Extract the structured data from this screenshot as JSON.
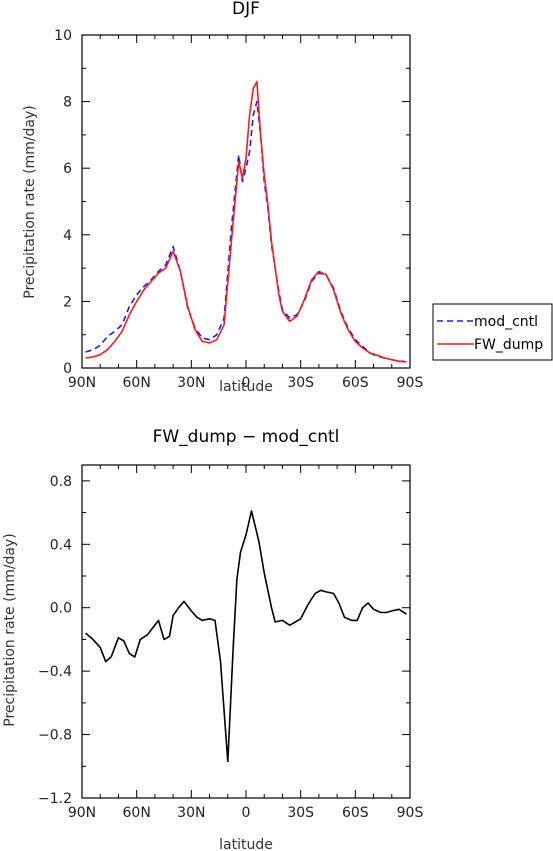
{
  "chart_data": [
    {
      "type": "line",
      "title": "DJF",
      "xlabel": "latitude",
      "ylabel": "Precipitation rate (mm/day)",
      "xticks": [
        "90N",
        "60N",
        "30N",
        "0",
        "30S",
        "60S",
        "90S"
      ],
      "yticks": [
        "0",
        "2",
        "4",
        "6",
        "8",
        "10"
      ],
      "xlim": [
        90,
        -90
      ],
      "ylim": [
        0,
        10
      ],
      "legend_position": "right",
      "series": [
        {
          "name": "mod_cntl",
          "color": "#1a1aff",
          "style": "dashed",
          "x": [
            88,
            84,
            80,
            76,
            72,
            68,
            64,
            60,
            56,
            52,
            48,
            44,
            40,
            36,
            32,
            28,
            24,
            20,
            16,
            12,
            8,
            4,
            2,
            0,
            -2,
            -4,
            -6,
            -8,
            -10,
            -12,
            -14,
            -16,
            -18,
            -20,
            -24,
            -28,
            -32,
            -36,
            -40,
            -44,
            -48,
            -52,
            -56,
            -60,
            -64,
            -68,
            -72,
            -76,
            -80,
            -84,
            -88
          ],
          "y": [
            0.48,
            0.55,
            0.68,
            0.95,
            1.1,
            1.3,
            1.85,
            2.2,
            2.45,
            2.65,
            2.9,
            3.1,
            3.65,
            2.9,
            1.8,
            1.2,
            0.9,
            0.85,
            1.0,
            1.5,
            4.2,
            6.4,
            5.6,
            6.0,
            6.5,
            7.6,
            8.0,
            7.0,
            5.6,
            4.8,
            3.7,
            3.0,
            2.3,
            1.75,
            1.5,
            1.6,
            2.0,
            2.6,
            2.85,
            2.8,
            2.4,
            1.7,
            1.2,
            0.85,
            0.65,
            0.45,
            0.35,
            0.3,
            0.25,
            0.2,
            0.2
          ]
        },
        {
          "name": "FW_dump",
          "color": "#ff1a1a",
          "style": "solid",
          "x": [
            88,
            84,
            80,
            76,
            72,
            68,
            64,
            60,
            56,
            52,
            48,
            44,
            40,
            36,
            32,
            28,
            24,
            20,
            16,
            12,
            8,
            4,
            2,
            0,
            -2,
            -4,
            -6,
            -8,
            -10,
            -12,
            -14,
            -16,
            -18,
            -20,
            -24,
            -28,
            -32,
            -36,
            -40,
            -44,
            -48,
            -52,
            -56,
            -60,
            -64,
            -68,
            -72,
            -76,
            -80,
            -84,
            -88
          ],
          "y": [
            0.3,
            0.33,
            0.4,
            0.55,
            0.8,
            1.1,
            1.6,
            2.0,
            2.35,
            2.6,
            2.85,
            3.0,
            3.5,
            2.9,
            1.85,
            1.15,
            0.8,
            0.75,
            0.85,
            1.3,
            3.8,
            6.2,
            5.7,
            6.3,
            7.6,
            8.4,
            8.6,
            7.0,
            5.8,
            4.9,
            3.8,
            3.0,
            2.2,
            1.7,
            1.4,
            1.55,
            2.05,
            2.65,
            2.9,
            2.8,
            2.35,
            1.65,
            1.15,
            0.8,
            0.6,
            0.45,
            0.38,
            0.3,
            0.25,
            0.2,
            0.18
          ]
        }
      ]
    },
    {
      "type": "line",
      "title": "FW_dump − mod_cntl",
      "xlabel": "latitude",
      "ylabel": "Precipitation rate (mm/day)",
      "xticks": [
        "90N",
        "60N",
        "30N",
        "0",
        "30S",
        "60S",
        "90S"
      ],
      "yticks": [
        "−1.2",
        "−0.8",
        "−0.4",
        "0.0",
        "0.4",
        "0.8"
      ],
      "xlim": [
        90,
        -90
      ],
      "ylim": [
        -1.2,
        0.9
      ],
      "series": [
        {
          "color": "#000000",
          "style": "solid",
          "x": [
            88,
            84,
            80,
            77,
            74,
            70,
            67,
            64,
            61,
            58,
            54,
            52,
            48,
            45,
            42,
            40,
            37,
            34,
            30,
            27,
            24,
            20,
            17,
            14,
            10,
            7,
            5,
            3,
            0,
            -3,
            -7,
            -10,
            -14,
            -16,
            -20,
            -24,
            -27,
            -30,
            -34,
            -38,
            -41,
            -44,
            -48,
            -51,
            -54,
            -58,
            -61,
            -64,
            -67,
            -70,
            -74,
            -77,
            -80,
            -84,
            -88
          ],
          "y": [
            -0.16,
            -0.2,
            -0.25,
            -0.34,
            -0.31,
            -0.19,
            -0.21,
            -0.29,
            -0.31,
            -0.2,
            -0.17,
            -0.14,
            -0.08,
            -0.2,
            -0.18,
            -0.05,
            0.0,
            0.04,
            -0.02,
            -0.06,
            -0.08,
            -0.07,
            -0.08,
            -0.34,
            -0.97,
            -0.25,
            0.18,
            0.35,
            0.46,
            0.61,
            0.42,
            0.22,
            0.0,
            -0.09,
            -0.08,
            -0.11,
            -0.09,
            -0.07,
            0.02,
            0.09,
            0.11,
            0.1,
            0.09,
            0.03,
            -0.06,
            -0.08,
            -0.08,
            0.0,
            0.03,
            -0.01,
            -0.03,
            -0.03,
            -0.02,
            -0.01,
            -0.04
          ]
        }
      ]
    }
  ]
}
